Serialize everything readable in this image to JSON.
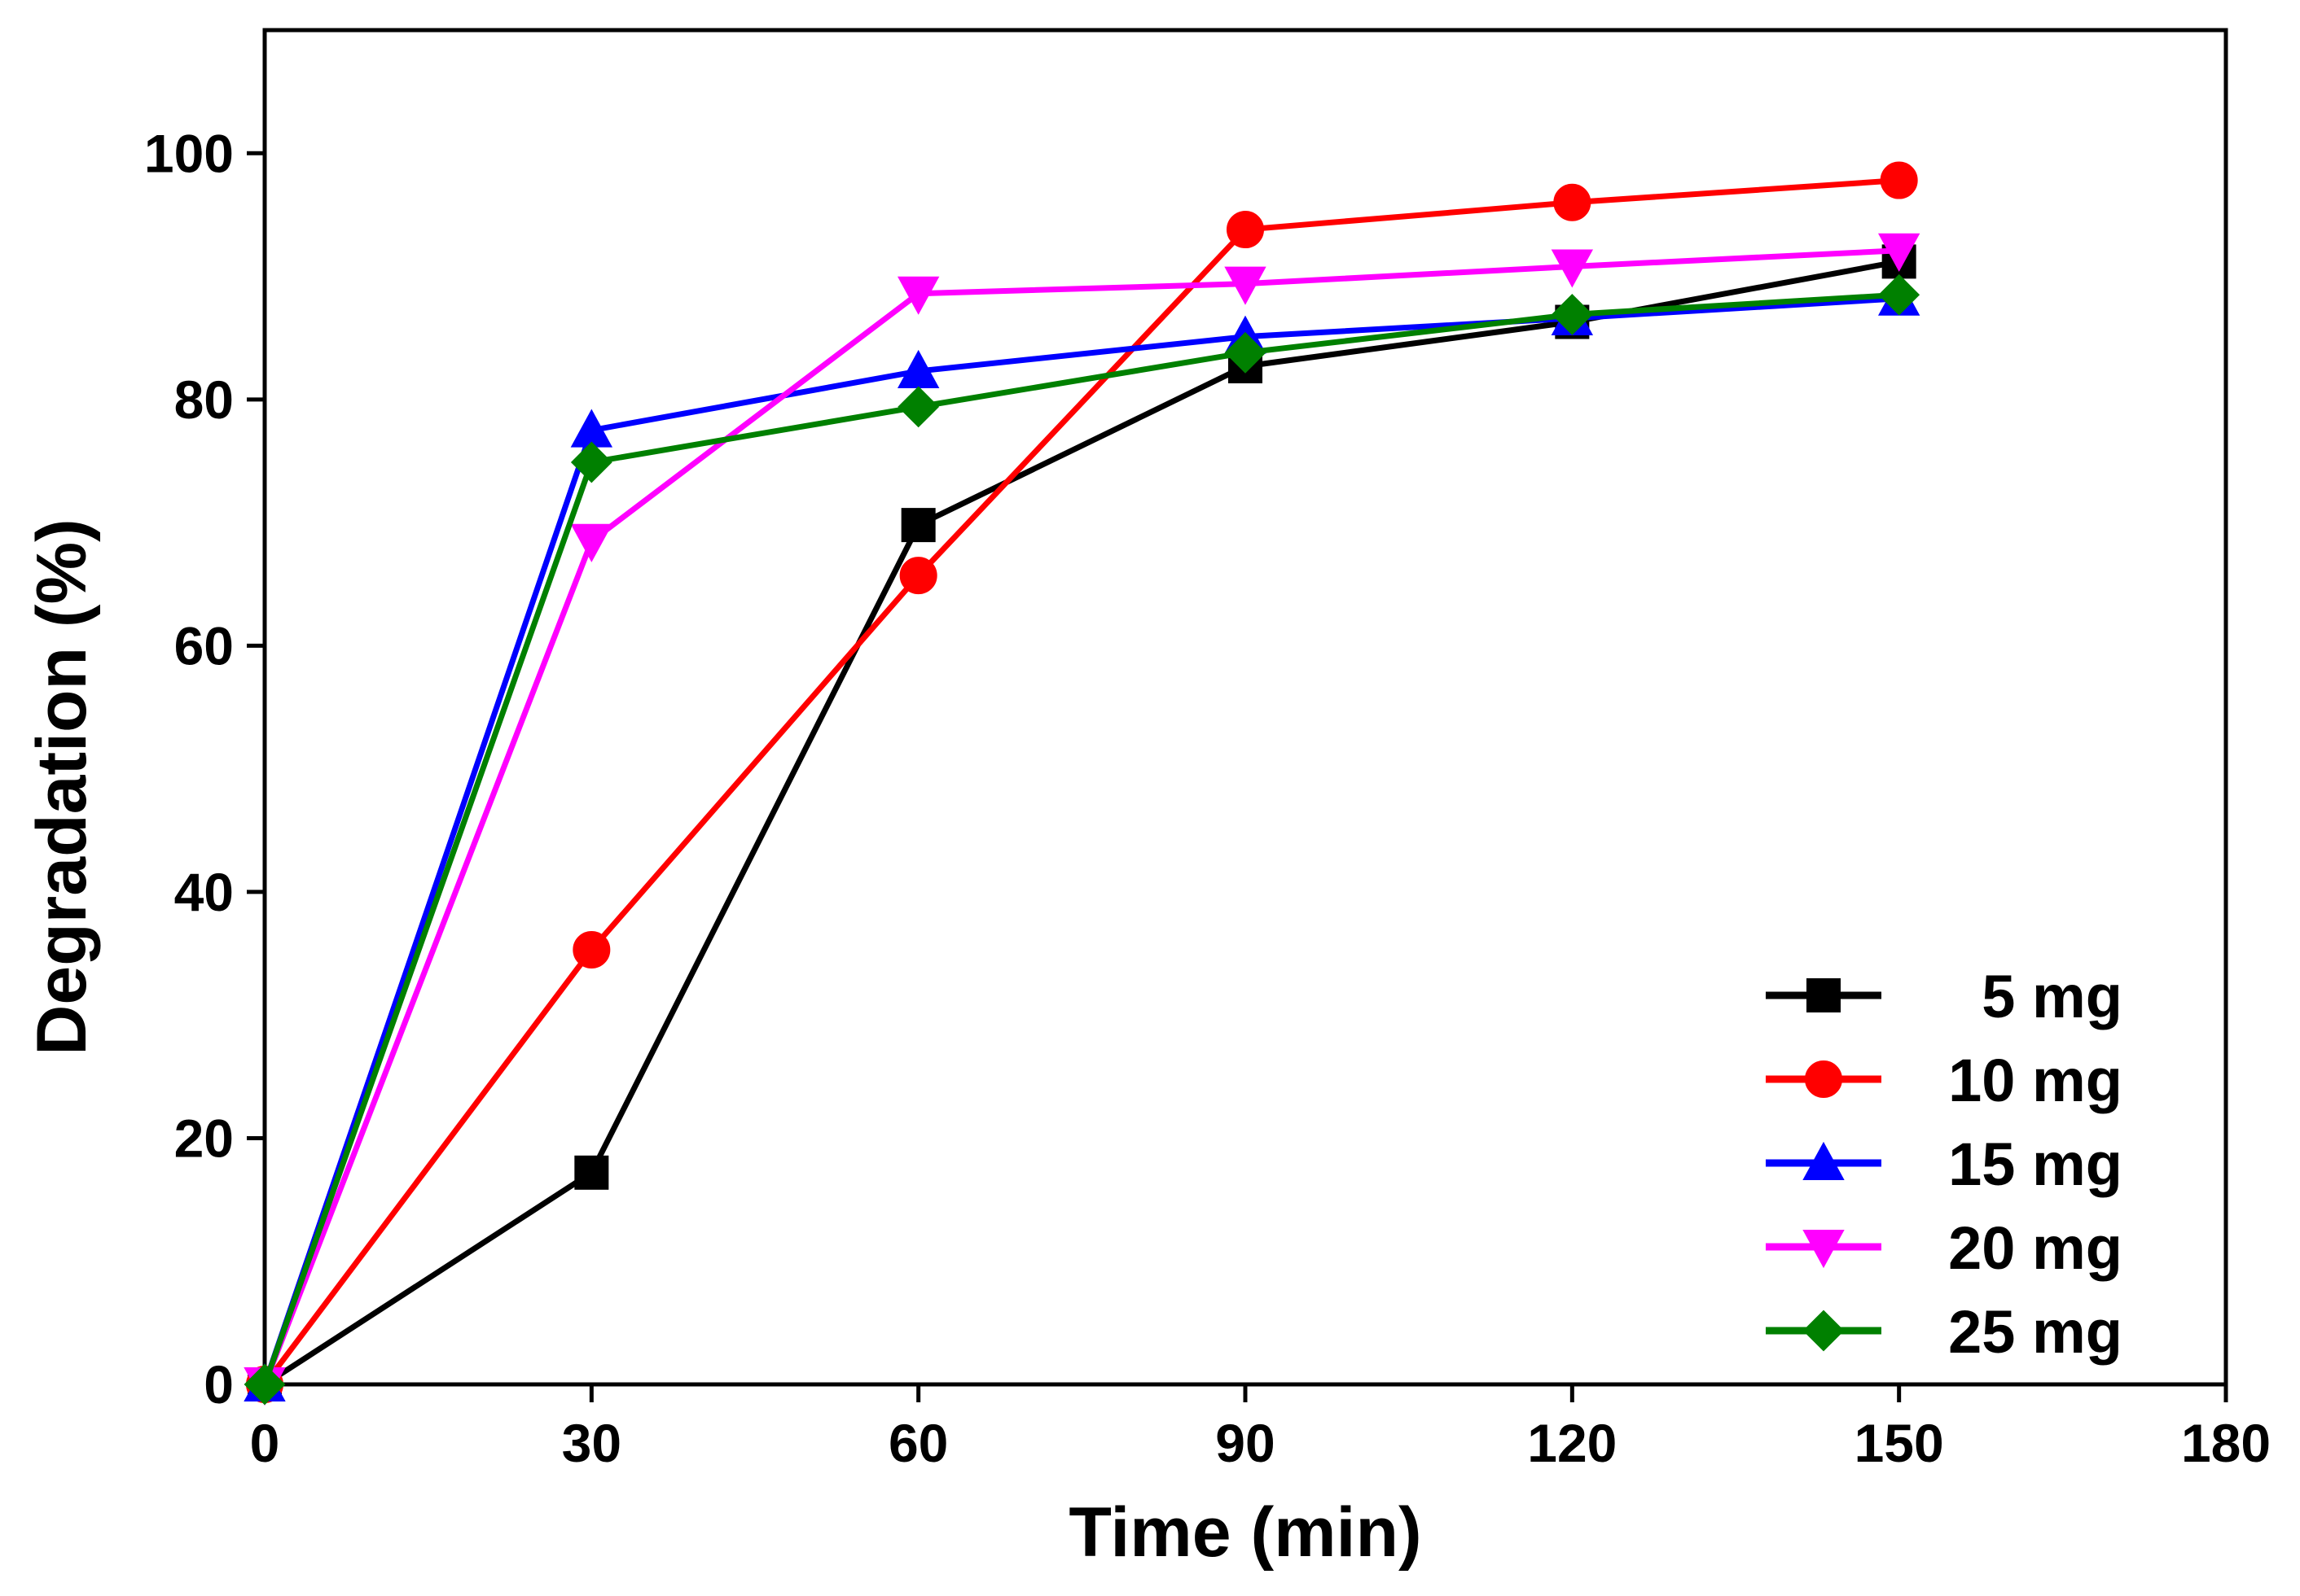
{
  "chart_data": {
    "type": "line",
    "xlabel": "Time (min)",
    "ylabel": "Degradation (%)",
    "xlim": [
      0,
      180
    ],
    "ylim": [
      0,
      110
    ],
    "xticks": [
      0,
      30,
      60,
      90,
      120,
      150,
      180
    ],
    "yticks": [
      0,
      20,
      40,
      60,
      80,
      100
    ],
    "grid": false,
    "legend_position": "bottom-right",
    "x": [
      0,
      30,
      60,
      90,
      120,
      150
    ],
    "series": [
      {
        "name": "5 mg",
        "color": "#000000",
        "marker": "square",
        "values": [
          0,
          17.2,
          69.8,
          82.7,
          86.3,
          91.2
        ]
      },
      {
        "name": "10 mg",
        "color": "#ff0000",
        "marker": "circle",
        "values": [
          0,
          35.3,
          65.7,
          93.8,
          96.0,
          97.8
        ]
      },
      {
        "name": "15 mg",
        "color": "#0000ff",
        "marker": "triangle-up",
        "values": [
          0,
          77.5,
          82.3,
          85.1,
          86.6,
          88.2
        ]
      },
      {
        "name": "20 mg",
        "color": "#ff00ff",
        "marker": "triangle-down",
        "values": [
          0,
          68.5,
          88.6,
          89.4,
          90.8,
          92.1
        ]
      },
      {
        "name": "25 mg",
        "color": "#008000",
        "marker": "diamond",
        "values": [
          0,
          74.9,
          79.4,
          83.8,
          86.9,
          88.5
        ]
      }
    ]
  }
}
